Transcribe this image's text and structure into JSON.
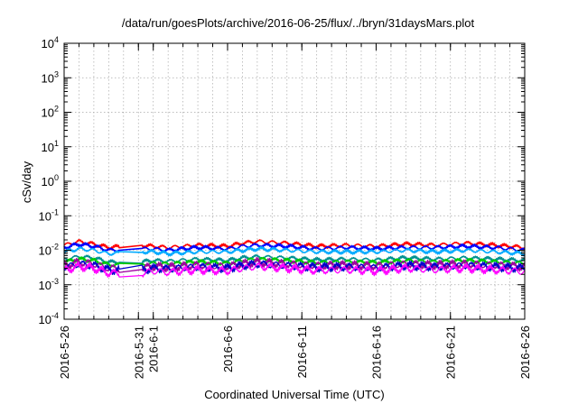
{
  "chart_data": {
    "type": "line",
    "title": "/data/run/goesPlots/archive/2016-06-25/flux/../bryn/31daysMars.plot",
    "xlabel": "Coordinated Universal Time (UTC)",
    "ylabel": "cSv/day",
    "yscale": "log",
    "ylim": [
      0.0001,
      10000
    ],
    "xlim": [
      "2016-05-26",
      "2016-06-26"
    ],
    "grid": true,
    "legend": "none",
    "x_ticks": [
      {
        "date": "2016-05-26",
        "label": "2016-5-26"
      },
      {
        "date": "2016-05-31",
        "label": "2016-5-31"
      },
      {
        "date": "2016-06-01",
        "label": "2016-6-1"
      },
      {
        "date": "2016-06-06",
        "label": "2016-6-6"
      },
      {
        "date": "2016-06-11",
        "label": "2016-6-11"
      },
      {
        "date": "2016-06-16",
        "label": "2016-6-16"
      },
      {
        "date": "2016-06-21",
        "label": "2016-6-21"
      },
      {
        "date": "2016-06-26",
        "label": "2016-6-26"
      }
    ],
    "y_ticks": [
      {
        "value": 0.0001,
        "base": "10",
        "exp": "-4"
      },
      {
        "value": 0.001,
        "base": "10",
        "exp": "-3"
      },
      {
        "value": 0.01,
        "base": "10",
        "exp": "-2"
      },
      {
        "value": 0.1,
        "base": "10",
        "exp": "-1"
      },
      {
        "value": 1,
        "base": "10",
        "exp": "0"
      },
      {
        "value": 10,
        "base": "10",
        "exp": "1"
      },
      {
        "value": 100,
        "base": "10",
        "exp": "2"
      },
      {
        "value": 1000,
        "base": "10",
        "exp": "3"
      },
      {
        "value": 10000,
        "base": "10",
        "exp": "4"
      }
    ],
    "gap": [
      "2016-05-29T18:00",
      "2016-05-31T06:00"
    ],
    "series": [
      {
        "color": "#ff0000",
        "x": [
          "2016-05-26",
          "2016-05-27",
          "2016-05-28",
          "2016-05-29",
          "2016-05-31",
          "2016-06-01",
          "2016-06-02",
          "2016-06-04",
          "2016-06-06",
          "2016-06-07",
          "2016-06-08",
          "2016-06-10",
          "2016-06-12",
          "2016-06-14",
          "2016-06-16",
          "2016-06-18",
          "2016-06-20",
          "2016-06-22",
          "2016-06-24",
          "2016-06-26"
        ],
        "y": [
          0.014,
          0.018,
          0.015,
          0.012,
          0.014,
          0.013,
          0.012,
          0.014,
          0.013,
          0.016,
          0.018,
          0.016,
          0.013,
          0.014,
          0.013,
          0.015,
          0.014,
          0.016,
          0.014,
          0.012
        ]
      },
      {
        "color": "#0000ff",
        "x": [
          "2016-05-26",
          "2016-05-27",
          "2016-05-28",
          "2016-05-29",
          "2016-05-31",
          "2016-06-01",
          "2016-06-02",
          "2016-06-04",
          "2016-06-06",
          "2016-06-07",
          "2016-06-08",
          "2016-06-10",
          "2016-06-12",
          "2016-06-14",
          "2016-06-16",
          "2016-06-18",
          "2016-06-20",
          "2016-06-22",
          "2016-06-24",
          "2016-06-26"
        ],
        "y": [
          0.012,
          0.015,
          0.013,
          0.01,
          0.011,
          0.011,
          0.01,
          0.012,
          0.011,
          0.013,
          0.014,
          0.013,
          0.011,
          0.012,
          0.011,
          0.012,
          0.012,
          0.013,
          0.012,
          0.01
        ]
      },
      {
        "color": "#00aaff",
        "x": [
          "2016-05-26",
          "2016-05-27",
          "2016-05-28",
          "2016-05-29",
          "2016-05-31",
          "2016-06-01",
          "2016-06-02",
          "2016-06-04",
          "2016-06-06",
          "2016-06-07",
          "2016-06-08",
          "2016-06-10",
          "2016-06-12",
          "2016-06-14",
          "2016-06-16",
          "2016-06-18",
          "2016-06-20",
          "2016-06-22",
          "2016-06-24",
          "2016-06-26"
        ],
        "y": [
          0.009,
          0.011,
          0.01,
          0.008,
          0.009,
          0.009,
          0.008,
          0.009,
          0.009,
          0.01,
          0.011,
          0.01,
          0.009,
          0.009,
          0.009,
          0.01,
          0.009,
          0.01,
          0.009,
          0.008
        ]
      },
      {
        "color": "#009090",
        "x": [
          "2016-05-26",
          "2016-05-27",
          "2016-05-28",
          "2016-05-29",
          "2016-05-31",
          "2016-06-01",
          "2016-06-02",
          "2016-06-04",
          "2016-06-06",
          "2016-06-07",
          "2016-06-08",
          "2016-06-10",
          "2016-06-12",
          "2016-06-14",
          "2016-06-16",
          "2016-06-18",
          "2016-06-20",
          "2016-06-22",
          "2016-06-24",
          "2016-06-26"
        ],
        "y": [
          0.0055,
          0.0065,
          0.006,
          0.0045,
          0.0045,
          0.005,
          0.0048,
          0.0055,
          0.005,
          0.006,
          0.0065,
          0.006,
          0.0052,
          0.0055,
          0.0052,
          0.006,
          0.0055,
          0.006,
          0.0055,
          0.005
        ]
      },
      {
        "color": "#00cc00",
        "x": [
          "2016-05-26",
          "2016-05-27",
          "2016-05-28",
          "2016-05-29",
          "2016-05-31",
          "2016-06-01",
          "2016-06-02",
          "2016-06-04",
          "2016-06-06",
          "2016-06-07",
          "2016-06-08",
          "2016-06-10",
          "2016-06-12",
          "2016-06-14",
          "2016-06-16",
          "2016-06-18",
          "2016-06-20",
          "2016-06-22",
          "2016-06-24",
          "2016-06-26"
        ],
        "y": [
          0.0045,
          0.0055,
          0.005,
          0.0038,
          0.0037,
          0.0042,
          0.004,
          0.0046,
          0.0042,
          0.005,
          0.0055,
          0.005,
          0.0044,
          0.0046,
          0.0044,
          0.005,
          0.0046,
          0.005,
          0.0046,
          0.0042
        ]
      },
      {
        "color": "#a000a0",
        "x": [
          "2016-05-26",
          "2016-05-27",
          "2016-05-28",
          "2016-05-29",
          "2016-05-31",
          "2016-06-01",
          "2016-06-02",
          "2016-06-04",
          "2016-06-06",
          "2016-06-07",
          "2016-06-08",
          "2016-06-10",
          "2016-06-12",
          "2016-06-14",
          "2016-06-16",
          "2016-06-18",
          "2016-06-20",
          "2016-06-22",
          "2016-06-24",
          "2016-06-26"
        ],
        "y": [
          0.0036,
          0.0045,
          0.004,
          0.003,
          0.0029,
          0.0034,
          0.0032,
          0.0037,
          0.0034,
          0.004,
          0.0045,
          0.004,
          0.0036,
          0.0037,
          0.0035,
          0.004,
          0.0037,
          0.004,
          0.0037,
          0.0033
        ]
      },
      {
        "color": "#0000cc",
        "x": [
          "2016-05-26",
          "2016-05-27",
          "2016-05-28",
          "2016-05-29",
          "2016-05-31",
          "2016-06-01",
          "2016-06-02",
          "2016-06-04",
          "2016-06-06",
          "2016-06-07",
          "2016-06-08",
          "2016-06-10",
          "2016-06-12",
          "2016-06-14",
          "2016-06-16",
          "2016-06-18",
          "2016-06-20",
          "2016-06-22",
          "2016-06-24",
          "2016-06-26"
        ],
        "y": [
          0.0032,
          0.004,
          0.0036,
          0.0027,
          0.0026,
          0.003,
          0.0029,
          0.0033,
          0.003,
          0.0036,
          0.004,
          0.0036,
          0.0032,
          0.0033,
          0.0031,
          0.0036,
          0.0033,
          0.0036,
          0.0033,
          0.003
        ]
      },
      {
        "color": "#ff00ff",
        "x": [
          "2016-05-26",
          "2016-05-27",
          "2016-05-28",
          "2016-05-29",
          "2016-05-31",
          "2016-06-01",
          "2016-06-02",
          "2016-06-04",
          "2016-06-06",
          "2016-06-07",
          "2016-06-08",
          "2016-06-10",
          "2016-06-12",
          "2016-06-14",
          "2016-06-16",
          "2016-06-18",
          "2016-06-20",
          "2016-06-22",
          "2016-06-24",
          "2016-06-26"
        ],
        "y": [
          0.0026,
          0.0034,
          0.003,
          0.0022,
          0.002,
          0.0025,
          0.0023,
          0.0027,
          0.0025,
          0.003,
          0.0034,
          0.003,
          0.0026,
          0.0027,
          0.0025,
          0.003,
          0.0027,
          0.003,
          0.0027,
          0.0024
        ]
      }
    ]
  }
}
